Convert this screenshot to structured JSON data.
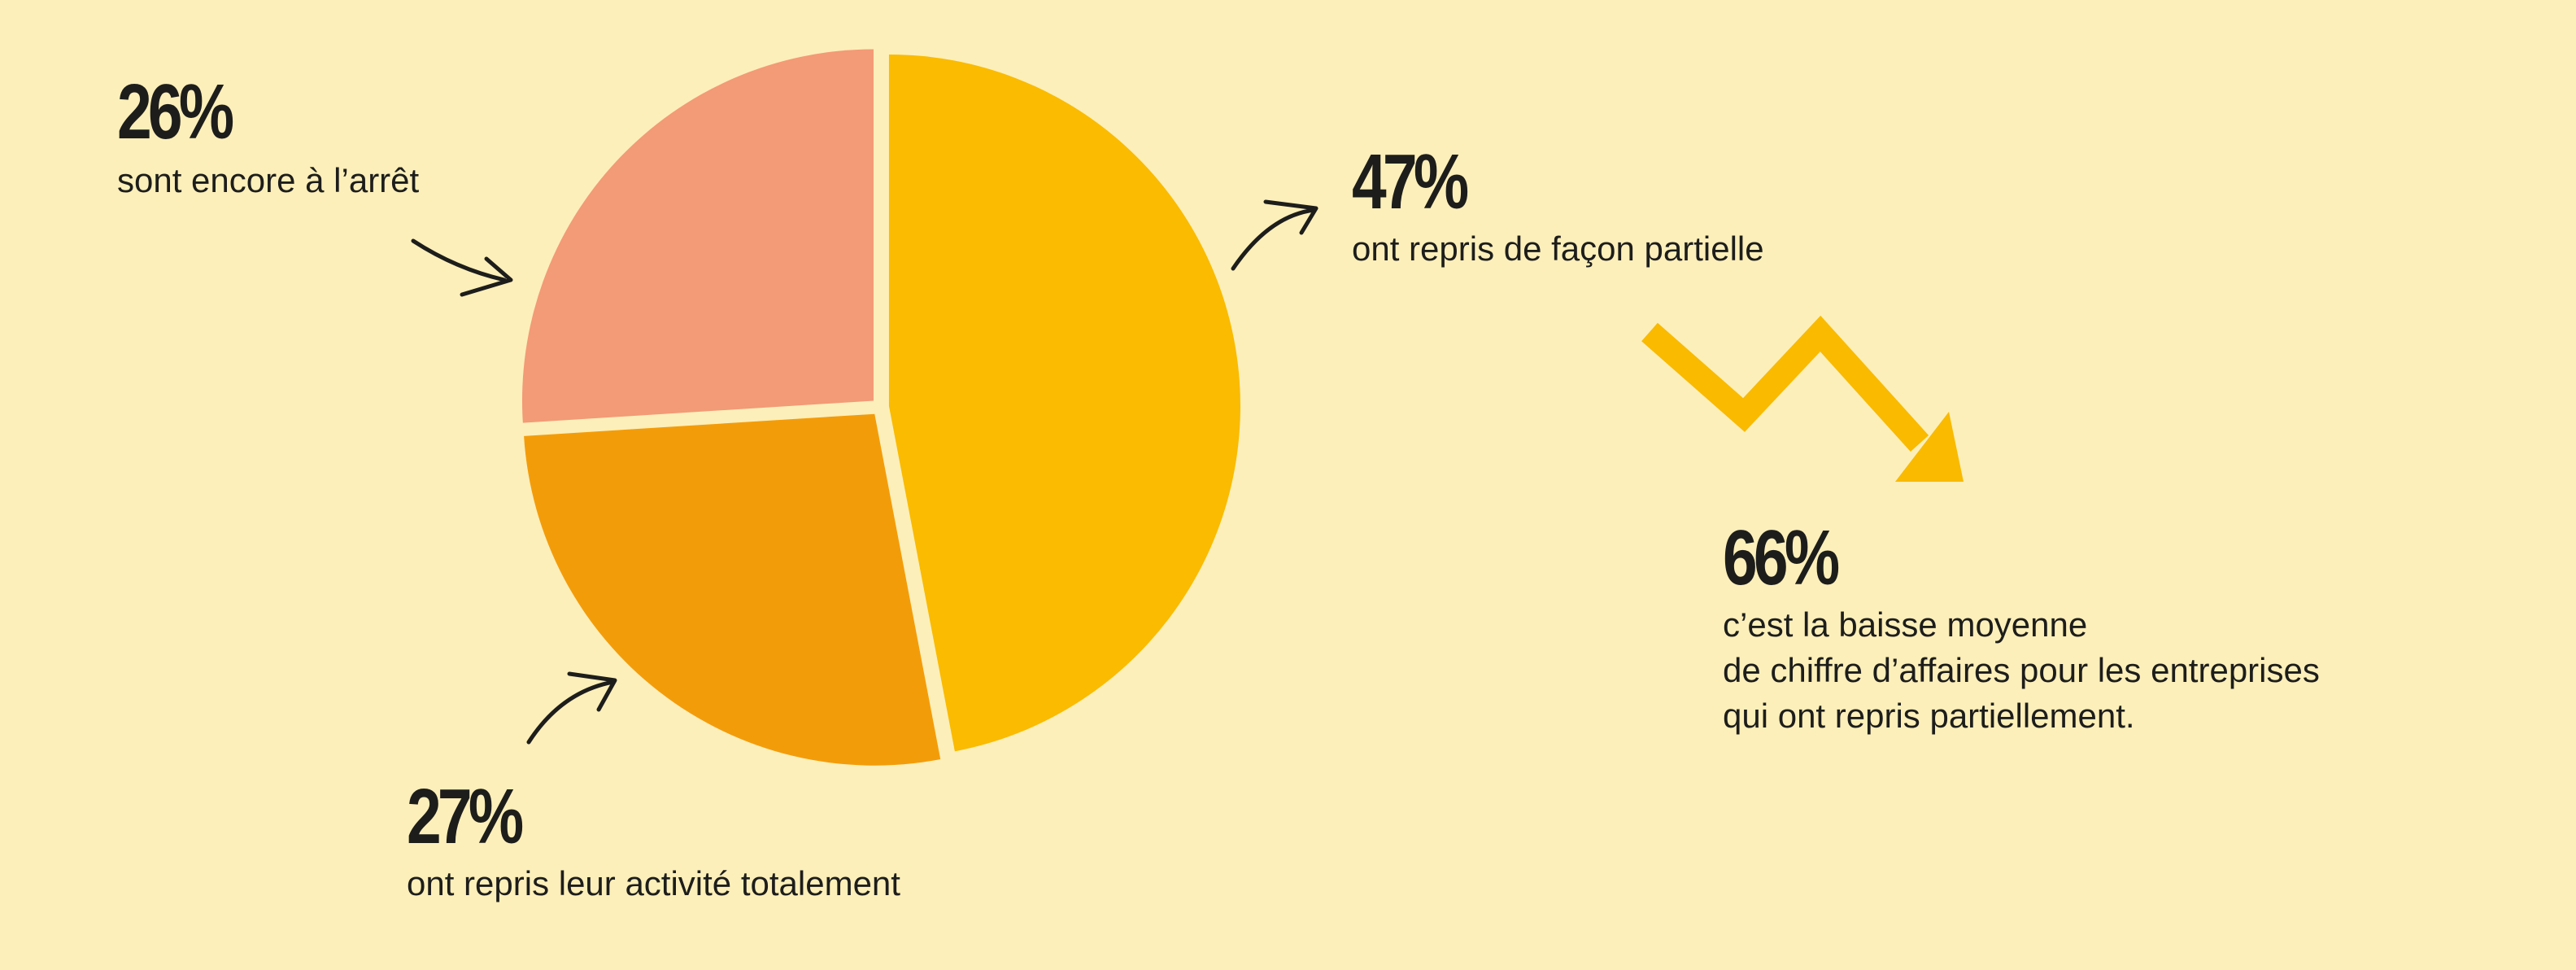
{
  "colors": {
    "background": "#FCEFBA",
    "text": "#1d1d1b",
    "arrow_accent": "#F9BA00"
  },
  "chart_data": {
    "type": "pie",
    "slices": [
      {
        "label": "ont repris de façon partielle",
        "value": 47,
        "value_label": "47%",
        "color": "#FABB00"
      },
      {
        "label": "ont repris leur activité totalement",
        "value": 27,
        "value_label": "27%",
        "color": "#F39C0A"
      },
      {
        "label": "sont encore à l’arrêt",
        "value": 26,
        "value_label": "26%",
        "color": "#F39A76"
      }
    ]
  },
  "callouts": {
    "stopped": {
      "pct": "26%",
      "text": "sont encore à l’arrêt"
    },
    "partial": {
      "pct": "47%",
      "text": "ont repris de façon partielle"
    },
    "total": {
      "pct": "27%",
      "text": "ont repris leur activité totalement"
    }
  },
  "revenue_drop": {
    "pct": "66%",
    "lines": [
      "c’est la baisse moyenne",
      "de chiffre d’affaires pour les entreprises",
      "qui ont repris partiellement."
    ],
    "icon": "zigzag-down-arrow-icon"
  }
}
